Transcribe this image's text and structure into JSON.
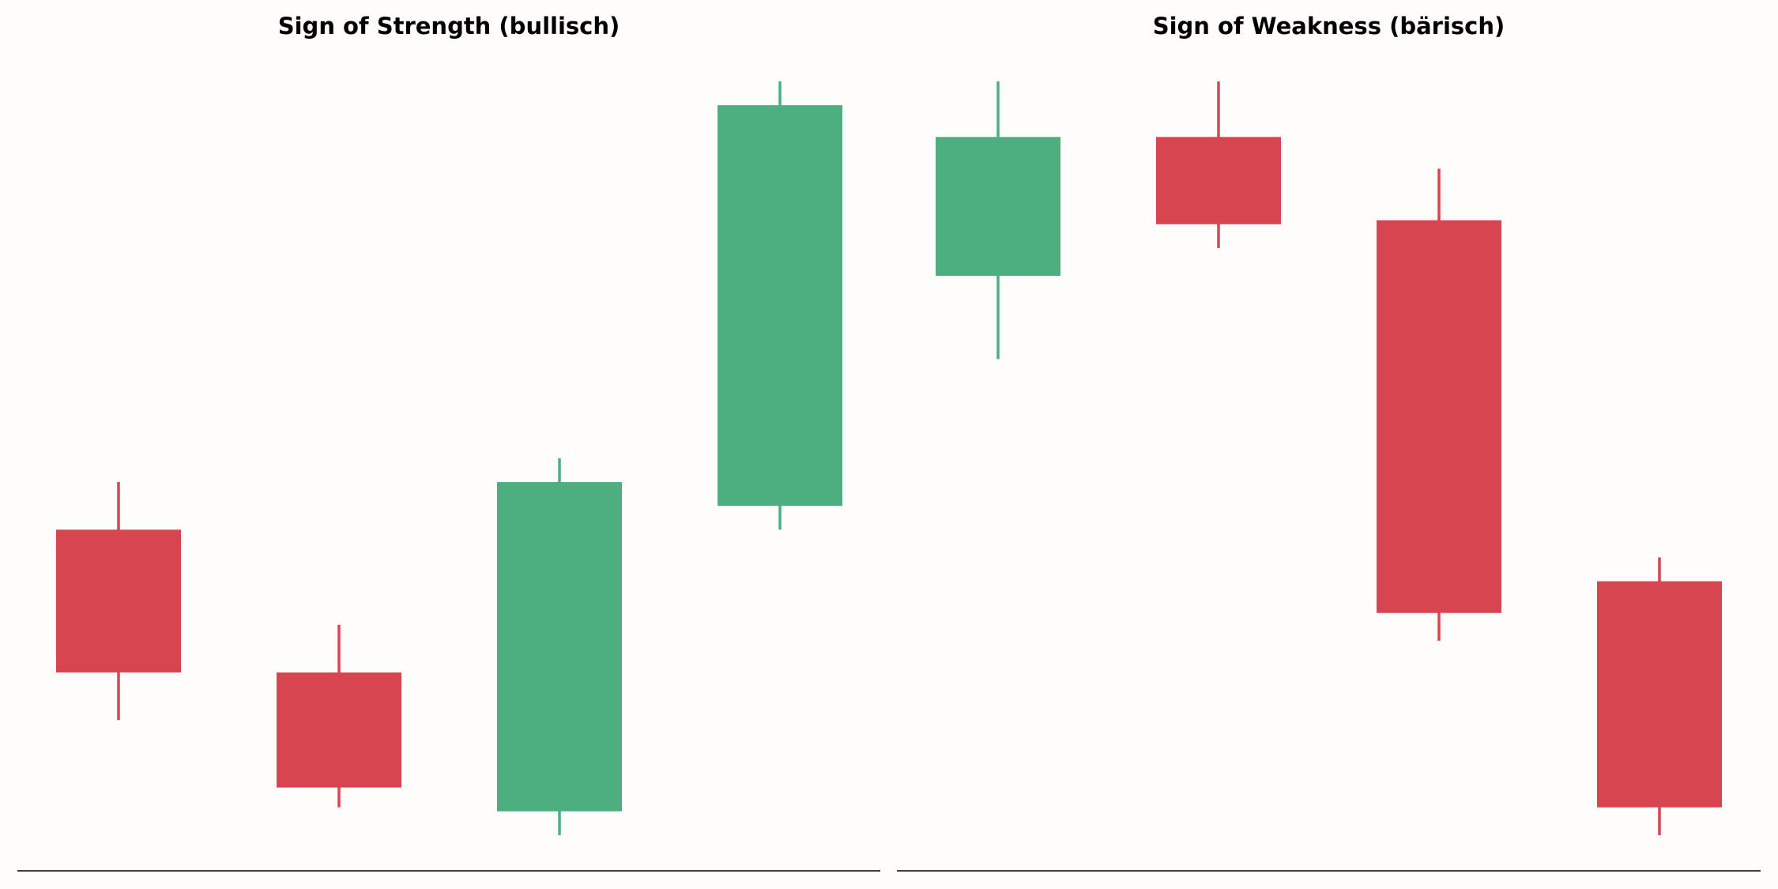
{
  "chart_data": [
    {
      "type": "candlestick",
      "title": "Sign of Strength (bullisch)",
      "open": [
        43,
        25,
        7.5,
        46
      ],
      "high": [
        49,
        31,
        52,
        99.5
      ],
      "low": [
        19,
        8,
        4.5,
        43
      ],
      "close": [
        25,
        10.5,
        49,
        96.5
      ],
      "up_color": "#4daf7f",
      "down_color": "#d64550",
      "ylim": [
        0,
        100
      ]
    },
    {
      "type": "candlestick",
      "title": "Sign of Weakness (bärisch)",
      "open": [
        75,
        92.5,
        82,
        36.5
      ],
      "high": [
        99.5,
        99.5,
        88.5,
        39.5
      ],
      "low": [
        64.5,
        78.5,
        29,
        4.5
      ],
      "close": [
        92.5,
        81.5,
        32.5,
        8
      ],
      "up_color": "#4daf7f",
      "down_color": "#d64550",
      "ylim": [
        0,
        100
      ]
    }
  ]
}
